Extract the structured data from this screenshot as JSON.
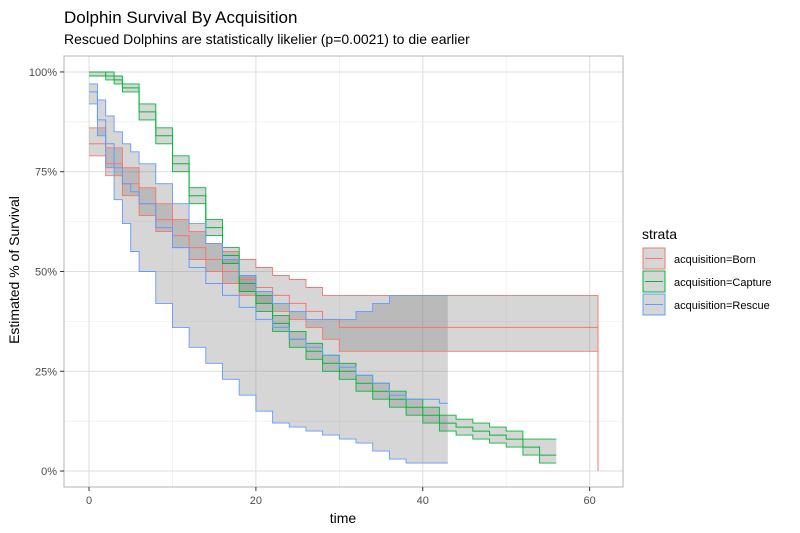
{
  "chart_data": {
    "type": "line",
    "title": "Dolphin Survival By Acquisition",
    "subtitle": "Rescued Dolphins are statistically likelier (p=0.0021) to die earlier",
    "xlabel": "time",
    "ylabel": "Estimated % of Survival",
    "xlim": [
      -3,
      64
    ],
    "ylim": [
      -0.04,
      1.04
    ],
    "x_ticks": [
      0,
      20,
      40,
      60
    ],
    "x_tick_labels": [
      "0",
      "20",
      "40",
      "60"
    ],
    "y_ticks": [
      0,
      0.25,
      0.5,
      0.75,
      1.0
    ],
    "y_tick_labels": [
      "0%",
      "25%",
      "50%",
      "75%",
      "100%"
    ],
    "grid": true,
    "legend_title": "strata",
    "legend_position": "right",
    "series": [
      {
        "name": "acquisition=Born",
        "color": "#F8766D",
        "x": [
          0,
          2,
          4,
          6,
          8,
          10,
          12,
          14,
          16,
          18,
          20,
          22,
          24,
          26,
          28,
          30,
          36,
          44,
          61
        ],
        "y": [
          0.82,
          0.77,
          0.72,
          0.67,
          0.63,
          0.59,
          0.56,
          0.53,
          0.5,
          0.48,
          0.46,
          0.44,
          0.42,
          0.4,
          0.38,
          0.36,
          0.36,
          0.36,
          0.0
        ],
        "lower": [
          0.79,
          0.74,
          0.69,
          0.64,
          0.6,
          0.56,
          0.53,
          0.5,
          0.47,
          0.44,
          0.42,
          0.4,
          0.38,
          0.36,
          0.33,
          0.3,
          0.3,
          0.3,
          0.0
        ],
        "upper": [
          0.86,
          0.81,
          0.76,
          0.71,
          0.67,
          0.63,
          0.6,
          0.57,
          0.55,
          0.53,
          0.51,
          0.49,
          0.48,
          0.46,
          0.44,
          0.44,
          0.44,
          0.44,
          0.0
        ]
      },
      {
        "name": "acquisition=Capture",
        "color": "#00BA38",
        "x": [
          0,
          1,
          2,
          3,
          4,
          6,
          8,
          10,
          12,
          14,
          16,
          18,
          20,
          22,
          24,
          26,
          28,
          30,
          32,
          34,
          36,
          38,
          40,
          42,
          44,
          46,
          48,
          50,
          52,
          54,
          56
        ],
        "y": [
          1.0,
          1.0,
          0.99,
          0.98,
          0.96,
          0.9,
          0.84,
          0.77,
          0.69,
          0.61,
          0.54,
          0.47,
          0.42,
          0.37,
          0.33,
          0.3,
          0.27,
          0.25,
          0.22,
          0.2,
          0.18,
          0.16,
          0.14,
          0.12,
          0.11,
          0.1,
          0.09,
          0.08,
          0.06,
          0.04,
          0.04
        ],
        "lower": [
          0.99,
          0.99,
          0.98,
          0.97,
          0.95,
          0.88,
          0.82,
          0.75,
          0.67,
          0.59,
          0.52,
          0.45,
          0.4,
          0.35,
          0.31,
          0.28,
          0.25,
          0.23,
          0.2,
          0.18,
          0.16,
          0.14,
          0.12,
          0.1,
          0.09,
          0.08,
          0.07,
          0.06,
          0.04,
          0.02,
          0.02
        ],
        "upper": [
          1.0,
          1.0,
          1.0,
          0.99,
          0.97,
          0.92,
          0.86,
          0.79,
          0.71,
          0.63,
          0.56,
          0.49,
          0.44,
          0.39,
          0.35,
          0.32,
          0.29,
          0.27,
          0.24,
          0.22,
          0.2,
          0.18,
          0.16,
          0.14,
          0.13,
          0.12,
          0.11,
          0.1,
          0.08,
          0.08,
          0.08
        ]
      },
      {
        "name": "acquisition=Rescue",
        "color": "#619CFF",
        "x": [
          0,
          1,
          2,
          3,
          4,
          5,
          6,
          8,
          10,
          12,
          14,
          16,
          18,
          20,
          22,
          24,
          26,
          28,
          30,
          32,
          34,
          36,
          38,
          40,
          42,
          43
        ],
        "y": [
          0.95,
          0.88,
          0.82,
          0.76,
          0.72,
          0.7,
          0.67,
          0.61,
          0.56,
          0.51,
          0.47,
          0.44,
          0.41,
          0.38,
          0.36,
          0.33,
          0.31,
          0.29,
          0.26,
          0.24,
          0.22,
          0.19,
          0.18,
          0.18,
          0.17,
          0.17
        ],
        "lower": [
          0.92,
          0.84,
          0.76,
          0.68,
          0.62,
          0.55,
          0.5,
          0.42,
          0.36,
          0.31,
          0.27,
          0.23,
          0.19,
          0.15,
          0.12,
          0.11,
          0.1,
          0.09,
          0.08,
          0.07,
          0.05,
          0.03,
          0.02,
          0.02,
          0.02,
          0.02
        ],
        "upper": [
          0.97,
          0.93,
          0.89,
          0.85,
          0.82,
          0.8,
          0.77,
          0.72,
          0.67,
          0.62,
          0.57,
          0.53,
          0.49,
          0.45,
          0.42,
          0.4,
          0.38,
          0.38,
          0.38,
          0.4,
          0.42,
          0.44,
          0.44,
          0.44,
          0.44,
          0.44
        ]
      }
    ]
  }
}
